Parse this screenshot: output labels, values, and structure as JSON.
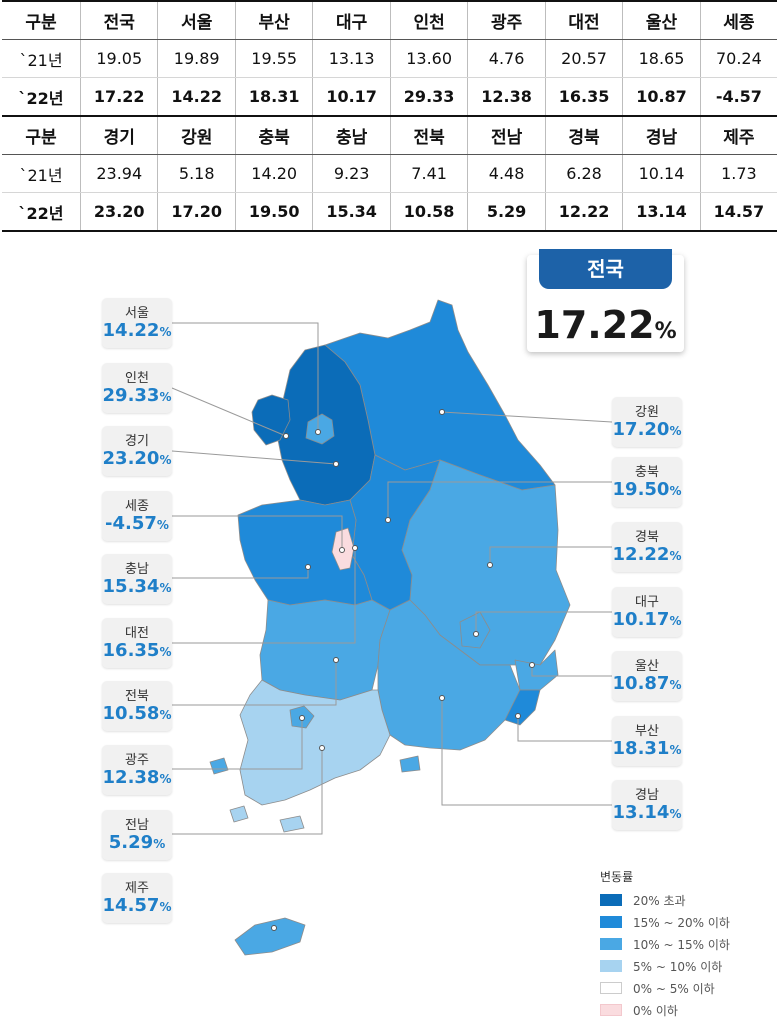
{
  "table": {
    "rows1": [
      [
        "구분",
        "전국",
        "서울",
        "부산",
        "대구",
        "인천",
        "광주",
        "대전",
        "울산",
        "세종"
      ],
      [
        "`21년",
        "19.05",
        "19.89",
        "19.55",
        "13.13",
        "13.60",
        "4.76",
        "20.57",
        "18.65",
        "70.24"
      ],
      [
        "`22년",
        "17.22",
        "14.22",
        "18.31",
        "10.17",
        "29.33",
        "12.38",
        "16.35",
        "10.87",
        "-4.57"
      ]
    ],
    "rows2": [
      [
        "구분",
        "경기",
        "강원",
        "충북",
        "충남",
        "전북",
        "전남",
        "경북",
        "경남",
        "제주"
      ],
      [
        "`21년",
        "23.94",
        "5.18",
        "14.20",
        "9.23",
        "7.41",
        "4.48",
        "6.28",
        "10.14",
        "1.73"
      ],
      [
        "`22년",
        "23.20",
        "17.20",
        "19.50",
        "15.34",
        "10.58",
        "5.29",
        "12.22",
        "13.14",
        "14.57"
      ]
    ]
  },
  "national": {
    "name": "전국",
    "value": "17.22",
    "unit": "%"
  },
  "callouts_left": [
    {
      "id": "seoul",
      "name": "서울",
      "value": "14.22",
      "unit": "%"
    },
    {
      "id": "incheon",
      "name": "인천",
      "value": "29.33",
      "unit": "%"
    },
    {
      "id": "gyeonggi",
      "name": "경기",
      "value": "23.20",
      "unit": "%"
    },
    {
      "id": "sejong",
      "name": "세종",
      "value": "-4.57",
      "unit": "%"
    },
    {
      "id": "chungnam",
      "name": "충남",
      "value": "15.34",
      "unit": "%"
    },
    {
      "id": "daejeon",
      "name": "대전",
      "value": "16.35",
      "unit": "%"
    },
    {
      "id": "jeonbuk",
      "name": "전북",
      "value": "10.58",
      "unit": "%"
    },
    {
      "id": "gwangju",
      "name": "광주",
      "value": "12.38",
      "unit": "%"
    },
    {
      "id": "jeonnam",
      "name": "전남",
      "value": "5.29",
      "unit": "%"
    },
    {
      "id": "jeju",
      "name": "제주",
      "value": "14.57",
      "unit": "%"
    }
  ],
  "callouts_right": [
    {
      "id": "gangwon",
      "name": "강원",
      "value": "17.20",
      "unit": "%"
    },
    {
      "id": "chungbuk",
      "name": "충북",
      "value": "19.50",
      "unit": "%"
    },
    {
      "id": "gyeongbuk",
      "name": "경북",
      "value": "12.22",
      "unit": "%"
    },
    {
      "id": "daegu",
      "name": "대구",
      "value": "10.17",
      "unit": "%"
    },
    {
      "id": "ulsan",
      "name": "울산",
      "value": "10.87",
      "unit": "%"
    },
    {
      "id": "busan",
      "name": "부산",
      "value": "18.31",
      "unit": "%"
    },
    {
      "id": "gyeongnam",
      "name": "경남",
      "value": "13.14",
      "unit": "%"
    }
  ],
  "legend": {
    "title": "변동률",
    "items": [
      {
        "label": "20% 초과",
        "color": "#0b6cb8"
      },
      {
        "label": "15% ~ 20% 이하",
        "color": "#1f8ad9"
      },
      {
        "label": "10% ~ 15% 이하",
        "color": "#4aa8e4"
      },
      {
        "label": "5% ~ 10% 이하",
        "color": "#a7d3f0"
      },
      {
        "label": "0% ~ 5% 이하",
        "color": "#ffffff"
      },
      {
        "label": "0% 이하",
        "color": "#fadcdf"
      }
    ]
  },
  "colors": {
    "over20": "#0b6cb8",
    "c15_20": "#1f8ad9",
    "c10_15": "#4aa8e4",
    "c5_10": "#a7d3f0",
    "c0_5": "#ffffff",
    "neg": "#fadcdf",
    "accent": "#1f7fc8",
    "navy": "#1d62a8"
  }
}
